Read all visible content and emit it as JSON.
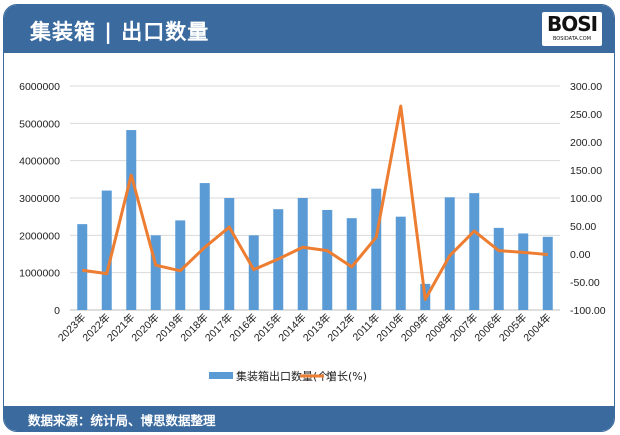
{
  "header": {
    "title": "集装箱 | 出口数量",
    "logo_text": "BOSI",
    "logo_sub": "BOSIDATA.COM"
  },
  "footer": {
    "source": "数据来源：统计局、博思数据整理"
  },
  "colors": {
    "bar": "#5b9bd5",
    "line": "#ed7d31",
    "frame": "#3a6a9e",
    "grid": "#d9d9d9"
  },
  "chart_data": {
    "type": "bar+line",
    "categories": [
      "2023年",
      "2022年",
      "2021年",
      "2020年",
      "2019年",
      "2018年",
      "2017年",
      "2016年",
      "2015年",
      "2014年",
      "2013年",
      "2012年",
      "2011年",
      "2010年",
      "2009年",
      "2008年",
      "2007年",
      "2006年",
      "2005年",
      "2004年"
    ],
    "series": [
      {
        "name": "集装箱出口数量(个)",
        "type": "bar",
        "axis": "left",
        "values": [
          2300000,
          3200000,
          4820000,
          2000000,
          2400000,
          3400000,
          3000000,
          2000000,
          2700000,
          3000000,
          2680000,
          2460000,
          3250000,
          2500000,
          700000,
          3020000,
          3130000,
          2200000,
          2050000,
          1960000
        ]
      },
      {
        "name": "增长(%)",
        "type": "line",
        "axis": "right",
        "values": [
          -29,
          -35,
          141,
          -20,
          -30,
          12,
          48,
          -28,
          -9,
          12,
          6,
          -23,
          30,
          264,
          -81,
          -3,
          41,
          6,
          3,
          -1
        ]
      }
    ],
    "left_axis": {
      "min": 0,
      "max": 6000000,
      "step": 1000000,
      "ticks": [
        "0",
        "1000000",
        "2000000",
        "3000000",
        "4000000",
        "5000000",
        "6000000"
      ]
    },
    "right_axis": {
      "min": -100,
      "max": 300,
      "step": 50,
      "ticks": [
        "-100.00",
        "-50.00",
        "0.00",
        "50.00",
        "100.00",
        "150.00",
        "200.00",
        "250.00",
        "300.00"
      ]
    },
    "grid": true,
    "legend": "bottom"
  }
}
